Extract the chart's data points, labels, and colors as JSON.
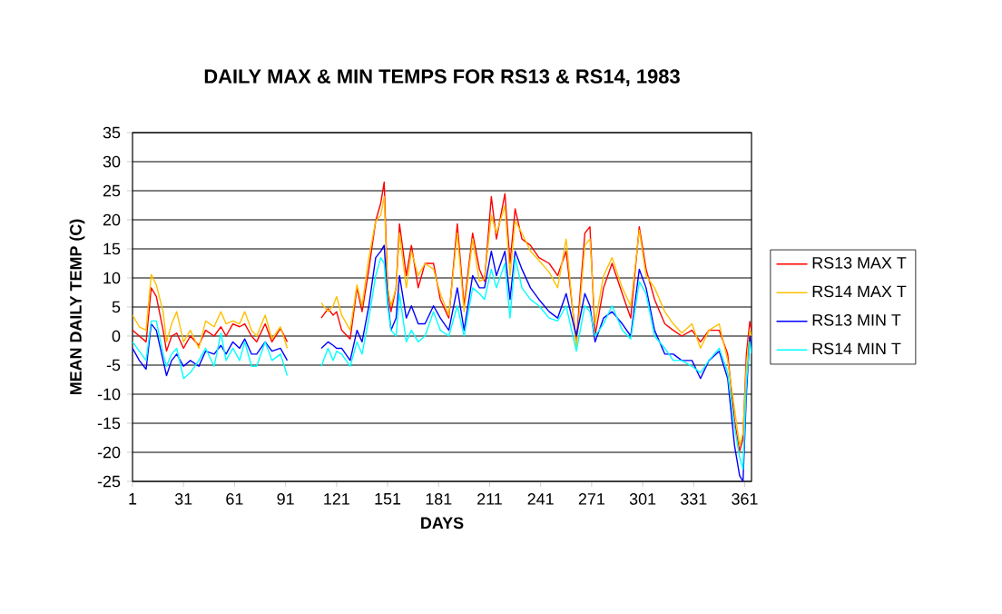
{
  "chart_data": {
    "type": "line",
    "title": "DAILY MAX & MIN TEMPS FOR RS13 & RS14, 1983",
    "xlabel": "DAYS",
    "ylabel": "MEAN DAILY TEMP (C)",
    "x": [
      1,
      5,
      9,
      12,
      15,
      19,
      21,
      24,
      27,
      31,
      35,
      40,
      44,
      49,
      53,
      56,
      60,
      64,
      67,
      71,
      74,
      79,
      83,
      88,
      92,
      100,
      112,
      116,
      119,
      121,
      124,
      129,
      133,
      136,
      140,
      144,
      147,
      149,
      151,
      153,
      156,
      158,
      162,
      165,
      169,
      173,
      178,
      182,
      187,
      192,
      196,
      201,
      205,
      208,
      212,
      215,
      220,
      223,
      226,
      230,
      235,
      240,
      246,
      251,
      256,
      262,
      267,
      270,
      273,
      278,
      283,
      289,
      294,
      299,
      303,
      308,
      314,
      319,
      324,
      330,
      335,
      340,
      346,
      351,
      355,
      358,
      360,
      362,
      364,
      365
    ],
    "series": [
      {
        "name": "RS13 MAX T",
        "color": "#ff0000",
        "values": [
          1,
          0,
          -1,
          8.3,
          6.8,
          1,
          -2.6,
          0,
          0.5,
          -2.1,
          0,
          -1.6,
          1,
          0,
          1.6,
          0,
          2.1,
          1.6,
          2.1,
          0,
          -1,
          2.1,
          -1,
          1.3,
          -1,
          null,
          3.1,
          4.7,
          3.6,
          4.2,
          1,
          -0.5,
          8.3,
          4.2,
          11.5,
          19.8,
          22.9,
          26.5,
          8.3,
          4.2,
          8.3,
          19.3,
          10.4,
          15.6,
          8.3,
          12.5,
          12.5,
          6.3,
          3.1,
          19.3,
          5.2,
          17.7,
          11.5,
          9.4,
          24,
          16.7,
          24.5,
          12.5,
          21.9,
          16.7,
          15.6,
          13.5,
          12.5,
          10.4,
          14.6,
          -1,
          17.7,
          18.8,
          0,
          8.3,
          12.5,
          7.3,
          3.1,
          18.8,
          11.5,
          6.3,
          2.1,
          1,
          0,
          1,
          -1,
          1,
          1,
          -3.1,
          -14.6,
          -19.8,
          -17.7,
          -3,
          2.5,
          1
        ]
      },
      {
        "name": "RS14 MAX T",
        "color": "#ffc000",
        "values": [
          3.6,
          1.6,
          1,
          10.6,
          8.8,
          4.2,
          -1,
          2.1,
          4.2,
          -1,
          1,
          -2.1,
          2.6,
          1.6,
          4.2,
          2.1,
          2.6,
          2.1,
          4.2,
          1,
          0,
          3.6,
          -0.5,
          1.6,
          -2.1,
          null,
          5.7,
          4.2,
          5.2,
          6.8,
          3.6,
          1,
          8.8,
          5.2,
          13.5,
          19.8,
          20.8,
          24,
          8.3,
          5.2,
          8.3,
          17.7,
          8.3,
          14.6,
          10.4,
          12.5,
          11.5,
          7.3,
          3.6,
          17.7,
          4.2,
          16.7,
          9.4,
          9.9,
          20.8,
          17.7,
          22.4,
          10.4,
          19.8,
          17.7,
          14.6,
          13,
          11,
          8.3,
          16.7,
          -2.1,
          15.6,
          16.7,
          2.1,
          10.4,
          13.5,
          8.3,
          5.2,
          18.2,
          10.4,
          8.3,
          4.2,
          2.1,
          0.5,
          2.1,
          -2.1,
          1,
          2.1,
          -4.2,
          -12.5,
          -18.8,
          -16.7,
          -5,
          1,
          0
        ]
      },
      {
        "name": "RS13 MIN T",
        "color": "#0000ff",
        "values": [
          -2.1,
          -4.2,
          -5.7,
          2.1,
          1,
          -4.2,
          -6.8,
          -4.2,
          -3.1,
          -5.2,
          -4.2,
          -5.2,
          -2.6,
          -3.1,
          -1.6,
          -3.1,
          -1,
          -2.1,
          -0.5,
          -3.1,
          -3.1,
          -1,
          -2.6,
          -2.1,
          -4.2,
          null,
          -2.1,
          -1,
          -1.6,
          -2.1,
          -2.1,
          -4.2,
          1,
          -1,
          5.2,
          13.5,
          14.6,
          15.6,
          6.3,
          1,
          3.1,
          10.4,
          3.1,
          5.2,
          2.1,
          2.1,
          5.2,
          3.1,
          1,
          8.3,
          1,
          10.4,
          8.3,
          8.3,
          14.6,
          10.4,
          14.6,
          6.3,
          14.6,
          11.5,
          8.3,
          6.3,
          4.2,
          3.1,
          7.3,
          0,
          7.3,
          5.2,
          -1,
          3.1,
          4.2,
          2.1,
          0,
          11.5,
          8.3,
          1,
          -3.1,
          -3.1,
          -4.2,
          -4.2,
          -7.3,
          -4.2,
          -2.6,
          -7.3,
          -18.8,
          -24,
          -25,
          -10,
          0,
          -2
        ]
      },
      {
        "name": "RS14 MIN T",
        "color": "#00ffff",
        "values": [
          -1,
          -2.6,
          -4.2,
          2.6,
          2.6,
          -3.1,
          -5.2,
          -3.1,
          -2.1,
          -7.3,
          -6.3,
          -4.2,
          -2.1,
          -5.2,
          0.5,
          -4.2,
          -2.1,
          -4.2,
          -1,
          -5.2,
          -5.2,
          -1,
          -4.2,
          -3.1,
          -6.8,
          null,
          -5.2,
          -2.1,
          -4.2,
          -2.6,
          -3.1,
          -5.2,
          -1,
          -3.1,
          3.1,
          10.4,
          13.5,
          12.5,
          5.2,
          1,
          0,
          7.3,
          -1,
          1,
          -1,
          0,
          4.2,
          1,
          0,
          5.2,
          0,
          8.3,
          7.3,
          6.3,
          11.5,
          8.3,
          12.5,
          3.1,
          13.5,
          8.3,
          6.3,
          5.2,
          3.1,
          2.6,
          5.2,
          -2.6,
          5.2,
          4.2,
          0,
          2.1,
          5.2,
          1,
          -0.5,
          9.4,
          7.3,
          0,
          -2.1,
          -4.2,
          -4.2,
          -5.2,
          -6.3,
          -4.2,
          -2.1,
          -6.3,
          -15.6,
          -20.8,
          -22.9,
          -8,
          -1,
          -3
        ]
      }
    ],
    "xlim": [
      1,
      365
    ],
    "xticks": [
      1,
      31,
      61,
      91,
      121,
      151,
      181,
      211,
      241,
      271,
      301,
      331,
      361
    ],
    "ylim": [
      -25,
      35
    ],
    "yticks": [
      -25,
      -20,
      -15,
      -10,
      -5,
      0,
      5,
      10,
      15,
      20,
      25,
      30,
      35
    ],
    "grid": "y",
    "legend": "right"
  }
}
